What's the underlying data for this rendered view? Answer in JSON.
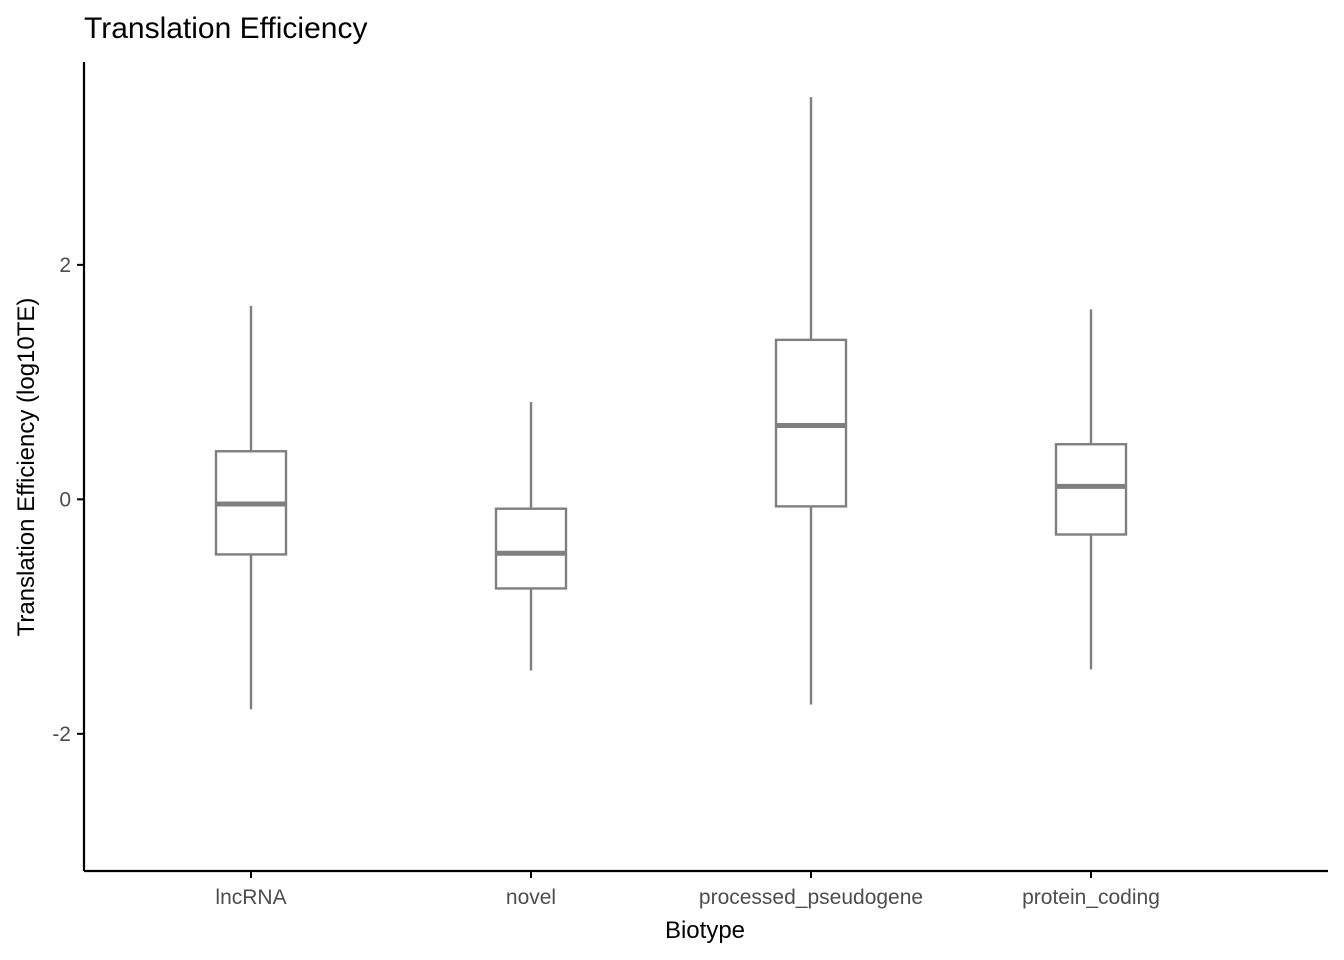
{
  "chart_data": {
    "type": "box",
    "title": "Translation Efficiency",
    "xlabel": "Biotype",
    "ylabel": "Translation Efficiency (log10TE)",
    "categories": [
      "lncRNA",
      "novel",
      "processed_pseudogene",
      "protein_coding"
    ],
    "yticks": [
      -2,
      0,
      2
    ],
    "ylim": [
      -3.17,
      3.73
    ],
    "grid": false,
    "legend": "none",
    "boxes": [
      {
        "category": "lncRNA",
        "whisker_low": -1.79,
        "q1": -0.47,
        "median": -0.04,
        "q3": 0.41,
        "whisker_high": 1.65
      },
      {
        "category": "novel",
        "whisker_low": -1.46,
        "q1": -0.76,
        "median": -0.46,
        "q3": -0.08,
        "whisker_high": 0.83
      },
      {
        "category": "processed_pseudogene",
        "whisker_low": -1.75,
        "q1": -0.06,
        "median": 0.63,
        "q3": 1.36,
        "whisker_high": 3.43
      },
      {
        "category": "protein_coding",
        "whisker_low": -1.45,
        "q1": -0.3,
        "median": 0.11,
        "q3": 0.47,
        "whisker_high": 1.62
      }
    ],
    "colors": {
      "box_stroke": "#7f7f7f",
      "axis": "#000000",
      "tick_label": "#4d4d4d"
    }
  }
}
